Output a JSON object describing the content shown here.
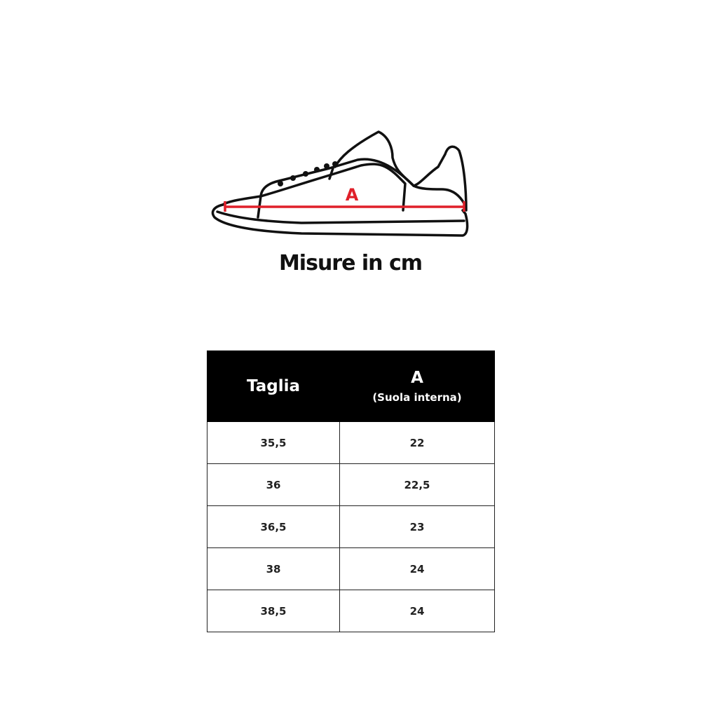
{
  "diagram": {
    "measure_label": "A",
    "measure_color": "#e0202a"
  },
  "title": "Misure in cm",
  "table": {
    "headers": [
      {
        "label": "Taglia",
        "sub": ""
      },
      {
        "label": "A",
        "sub": "(Suola interna)"
      }
    ],
    "rows": [
      [
        "35,5",
        "22"
      ],
      [
        "36",
        "22,5"
      ],
      [
        "36,5",
        "23"
      ],
      [
        "38",
        "24"
      ],
      [
        "38,5",
        "24"
      ]
    ]
  }
}
